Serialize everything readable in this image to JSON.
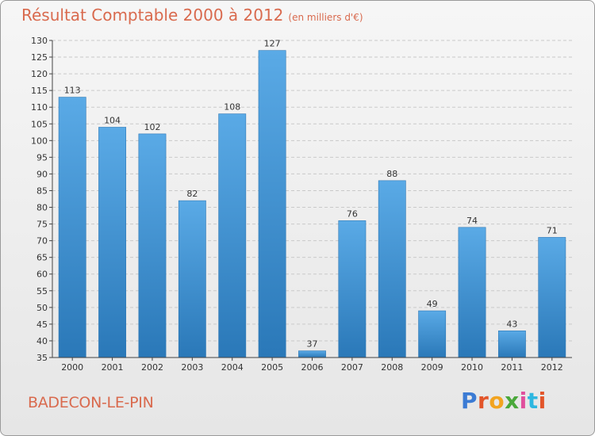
{
  "header": {
    "title": "Résultat Comptable 2000 à 2012",
    "subtitle": "(en milliers d'€)"
  },
  "footer": {
    "place": "BADECON-LE-PIN",
    "logo": "Proxiti",
    "logo_colors": [
      "#3b7bd4",
      "#e2552a",
      "#f2a420",
      "#4aa83a",
      "#e04f9c",
      "#2eb7e0",
      "#e2552a"
    ]
  },
  "chart_data": {
    "type": "bar",
    "title": "Résultat Comptable 2000 à 2012",
    "subtitle": "(en milliers d'€)",
    "categories": [
      "2000",
      "2001",
      "2002",
      "2003",
      "2004",
      "2005",
      "2006",
      "2007",
      "2008",
      "2009",
      "2010",
      "2011",
      "2012"
    ],
    "values": [
      113,
      104,
      102,
      82,
      108,
      127,
      37,
      76,
      88,
      49,
      74,
      43,
      71
    ],
    "ylim": [
      35,
      130
    ],
    "yticks": [
      35,
      40,
      45,
      50,
      55,
      60,
      65,
      70,
      75,
      80,
      85,
      90,
      95,
      100,
      105,
      110,
      115,
      120,
      125,
      130
    ],
    "grid": true,
    "bar_color_top": "#5aaae6",
    "bar_color_bottom": "#2a78b8",
    "xlabel": "",
    "ylabel": ""
  }
}
